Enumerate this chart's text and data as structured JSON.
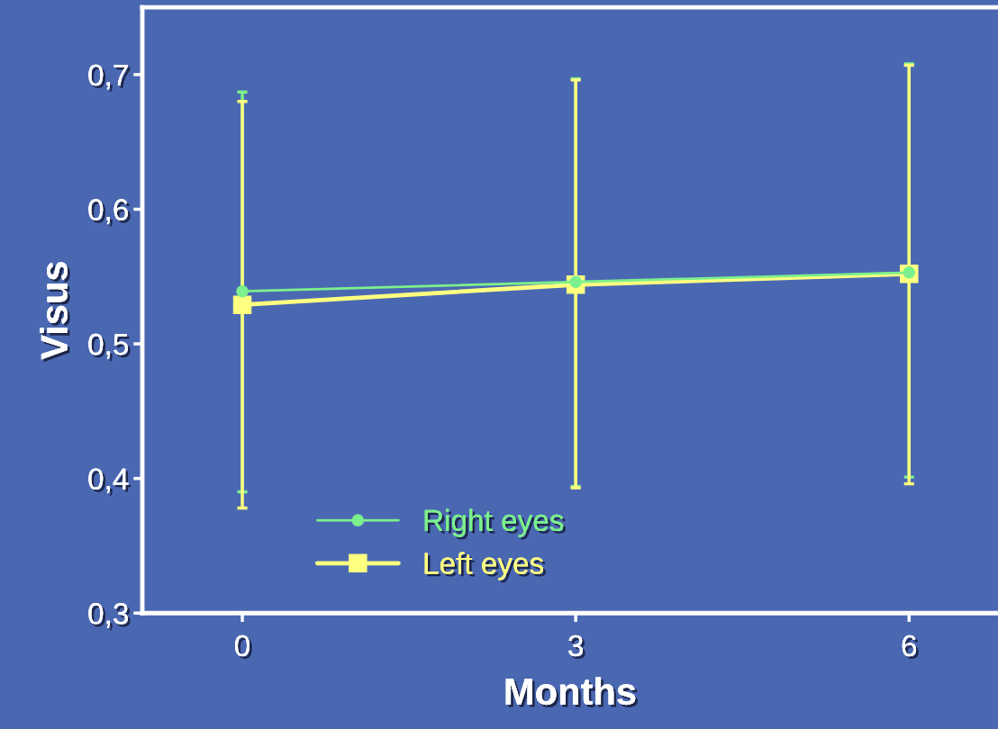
{
  "chart_data": {
    "type": "line",
    "xlabel": "Months",
    "ylabel": "Visus",
    "x": [
      0,
      3,
      6
    ],
    "series": [
      {
        "name": "Right eyes",
        "color": "#7cf08c",
        "marker": "circle",
        "values": [
          0.539,
          0.546,
          0.553
        ],
        "errors": [
          [
            0.39,
            0.687
          ],
          [
            0.394,
            0.697
          ],
          [
            0.401,
            0.708
          ]
        ]
      },
      {
        "name": "Left eyes",
        "color": "#ffff80",
        "marker": "square",
        "values": [
          0.529,
          0.544,
          0.552
        ],
        "errors": [
          [
            0.378,
            0.68
          ],
          [
            0.393,
            0.696
          ],
          [
            0.396,
            0.707
          ]
        ]
      }
    ],
    "xlim": [
      -0.9,
      6.8
    ],
    "xticks": [
      0,
      3,
      6
    ],
    "ylim": [
      0.3,
      0.75
    ],
    "yticks": [
      {
        "value": 0.3,
        "label": "0,3"
      },
      {
        "value": 0.4,
        "label": "0,4"
      },
      {
        "value": 0.5,
        "label": "0,5"
      },
      {
        "value": 0.6,
        "label": "0,6"
      },
      {
        "value": 0.7,
        "label": "0,7"
      }
    ],
    "grid": false,
    "legend": "bottom left",
    "line_style": "solid"
  }
}
